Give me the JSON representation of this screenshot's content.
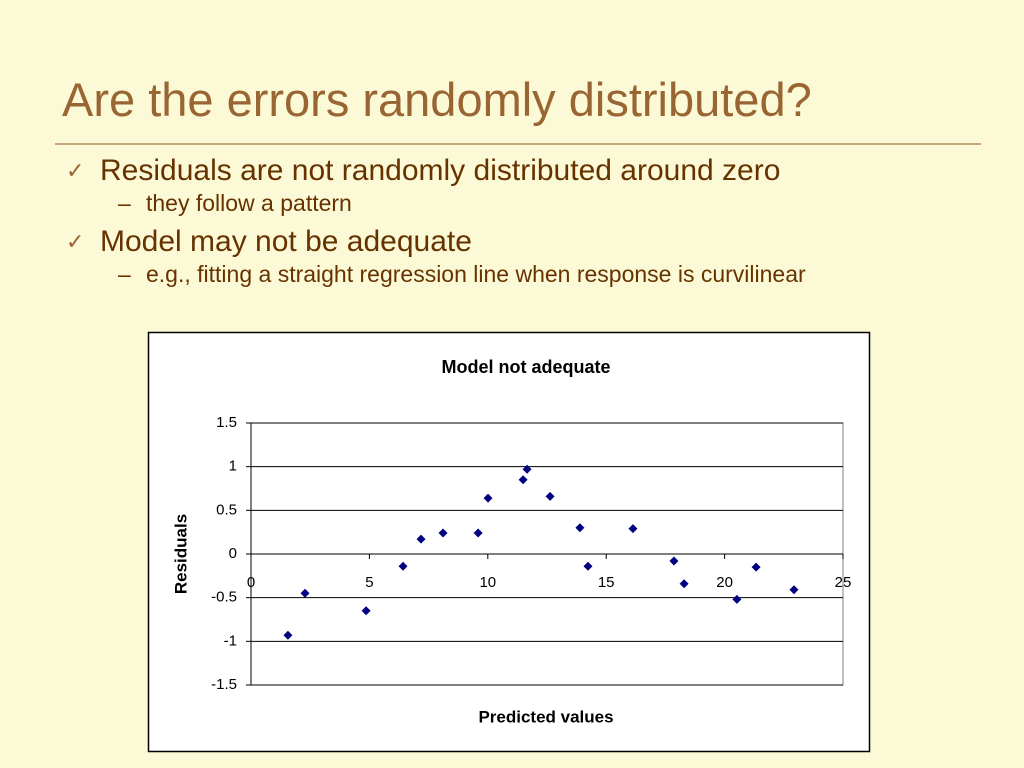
{
  "title": "Are the errors randomly distributed?",
  "bullets": [
    {
      "text": "Residuals are not randomly distributed around zero",
      "sub": [
        "they follow a pattern"
      ]
    },
    {
      "text": "Model may not be adequate",
      "sub": [
        "e.g., fitting a straight regression line when response is curvilinear"
      ]
    }
  ],
  "chart_data": {
    "type": "scatter",
    "title": "Model not adequate",
    "x_label": "Predicted values",
    "y_label": "Residuals",
    "x": [
      1.56,
      2.28,
      4.86,
      6.42,
      7.18,
      8.11,
      9.59,
      10.01,
      11.49,
      11.66,
      12.63,
      13.89,
      14.23,
      16.13,
      17.86,
      18.29,
      20.52,
      21.33,
      22.93
    ],
    "y": [
      -0.93,
      -0.45,
      -0.65,
      -0.14,
      0.17,
      0.24,
      0.24,
      0.64,
      0.85,
      0.97,
      0.66,
      0.3,
      -0.14,
      0.29,
      -0.08,
      -0.34,
      -0.52,
      -0.15,
      -0.41
    ],
    "color": "#000080",
    "xlim": [
      0,
      25
    ],
    "xticks": [
      0,
      5,
      10,
      15,
      20,
      25
    ],
    "ylim": [
      -1.5,
      1.5
    ],
    "yticks": [
      -1.5,
      -1,
      -0.5,
      0,
      0.5,
      1,
      1.5
    ],
    "grid": true
  }
}
